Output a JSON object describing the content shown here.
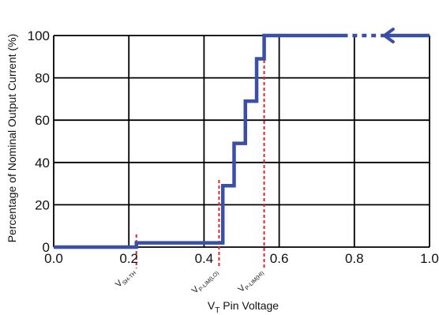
{
  "chart_data": {
    "type": "line",
    "title": "",
    "xlabel_main": "V",
    "xlabel_sub": "T",
    "xlabel_rest": " Pin Voltage",
    "ylabel": "Percentage of Nominal Output Current (%)",
    "xlim": [
      0,
      1.0
    ],
    "ylim": [
      0,
      100
    ],
    "xticks": [
      "0.0",
      "0.2",
      "0.4",
      "0.6",
      "0.8",
      "1.0"
    ],
    "yticks": [
      "0",
      "20",
      "40",
      "60",
      "80",
      "100"
    ],
    "grid": true,
    "series": [
      {
        "color": "#3a4fa8",
        "x": [
          0.0,
          0.22,
          0.22,
          0.45,
          0.45,
          0.48,
          0.48,
          0.51,
          0.51,
          0.54,
          0.54,
          0.56,
          0.56,
          1.0
        ],
        "y": [
          0,
          0,
          2,
          2,
          29,
          29,
          49,
          49,
          69,
          69,
          89,
          89,
          100,
          100
        ]
      }
    ],
    "dashed_segment_x": [
      0.77,
      0.87
    ],
    "arrow_x": 0.88,
    "markers": [
      {
        "x": 0.22,
        "main": "V",
        "sub": "SH-TH"
      },
      {
        "x": 0.44,
        "main": "V",
        "sub": "P-LIM(LO)"
      },
      {
        "x": 0.56,
        "main": "V",
        "sub": "P-LIM(HI)"
      }
    ],
    "marker_color": "#e8202a"
  }
}
